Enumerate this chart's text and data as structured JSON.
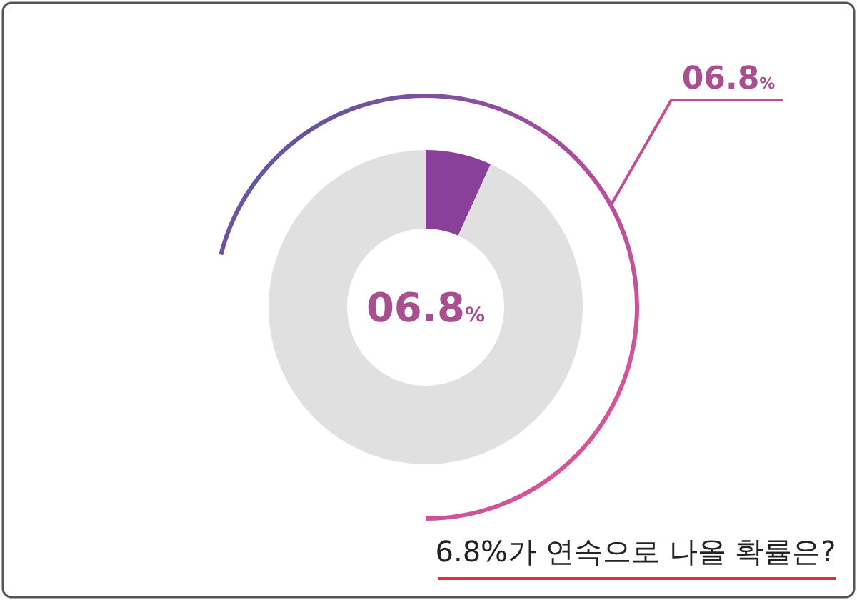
{
  "chart_data": {
    "type": "donut",
    "title": "6.8%가 연속으로 나올 확률은?",
    "categories": [
      null,
      null
    ],
    "values": [
      6.8,
      93.2
    ],
    "colors": [
      "#8a3f9a",
      "#e0e0e0"
    ],
    "annotations": [
      "06.8%",
      "06.8%"
    ]
  }
}
